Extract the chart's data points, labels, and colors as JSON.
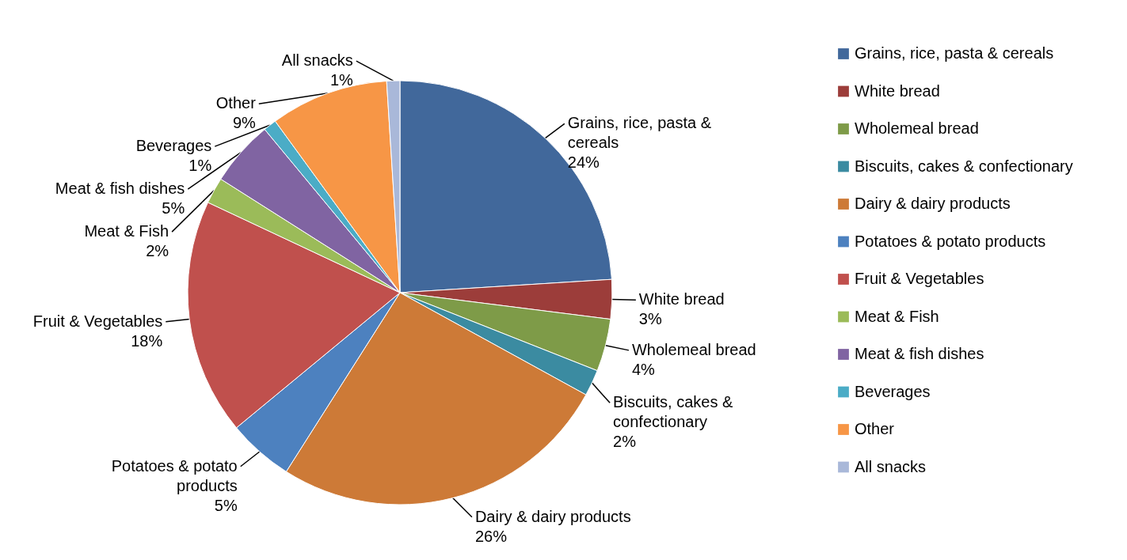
{
  "chart_data": {
    "type": "pie",
    "categories": [
      "Grains, rice, pasta & cereals",
      "White bread",
      "Wholemeal bread",
      "Biscuits, cakes & confectionary",
      "Dairy & dairy products",
      "Potatoes & potato products",
      "Fruit & Vegetables",
      "Meat & Fish",
      "Meat & fish dishes",
      "Beverages",
      "Other",
      "All snacks"
    ],
    "values": [
      24,
      3,
      4,
      2,
      26,
      5,
      18,
      2,
      5,
      1,
      9,
      1
    ],
    "value_labels": [
      "24%",
      "3%",
      "4%",
      "2%",
      "26%",
      "5%",
      "18%",
      "2%",
      "5%",
      "1%",
      "9%",
      "1%"
    ],
    "colors": [
      "#41689b",
      "#9c3d3a",
      "#7e9b48",
      "#3b8ba1",
      "#cd7a37",
      "#4d81bf",
      "#c0504d",
      "#9bbb59",
      "#8064a2",
      "#4bacc6",
      "#f79646",
      "#a9b8d9"
    ],
    "legend": "right"
  }
}
